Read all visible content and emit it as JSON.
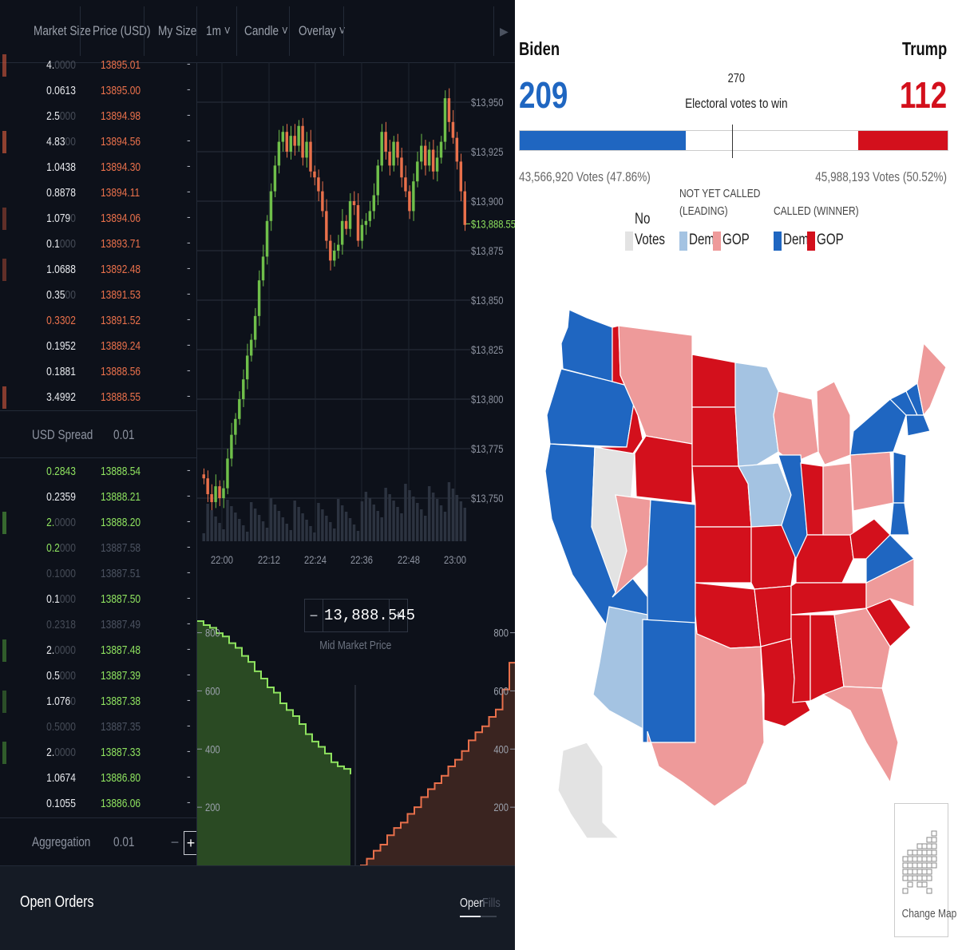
{
  "trading": {
    "header": {
      "market_size": "Market Size",
      "price_usd": "Price (USD)",
      "my_size": "My Size",
      "interval": "1m",
      "chart_type": "Candle",
      "overlay": "Overlay"
    },
    "asks": [
      {
        "size_main": "4.",
        "size_dim": "0000",
        "price": "13895.01",
        "bar": 0.3
      },
      {
        "size_main": "0.0613",
        "size_dim": "",
        "price": "13895.00",
        "bar": 0
      },
      {
        "size_main": "2.5",
        "size_dim": "000",
        "price": "13894.98",
        "bar": 0
      },
      {
        "size_main": "4.83",
        "size_dim": "00",
        "price": "13894.56",
        "bar": 0.35
      },
      {
        "size_main": "1.0438",
        "size_dim": "",
        "price": "13894.30",
        "bar": 0
      },
      {
        "size_main": "0.8878",
        "size_dim": "",
        "price": "13894.11",
        "bar": 0
      },
      {
        "size_main": "1.079",
        "size_dim": "0",
        "price": "13894.06",
        "bar": 0.1
      },
      {
        "size_main": "0.1",
        "size_dim": "000",
        "price": "13893.71",
        "bar": 0
      },
      {
        "size_main": "1.0688",
        "size_dim": "",
        "price": "13892.48",
        "bar": 0.1
      },
      {
        "size_main": "0.35",
        "size_dim": "00",
        "price": "13891.53",
        "bar": 0
      },
      {
        "size_main": "0.3302",
        "size_dim": "",
        "price": "13891.52",
        "bar": 0,
        "size_color": "#e9704b"
      },
      {
        "size_main": "0.1952",
        "size_dim": "",
        "price": "13889.24",
        "bar": 0
      },
      {
        "size_main": "0.1881",
        "size_dim": "",
        "price": "13888.56",
        "bar": 0
      },
      {
        "size_main": "3.4992",
        "size_dim": "",
        "price": "13888.55",
        "bar": 0.3
      }
    ],
    "spread_label": "USD Spread",
    "spread_value": "0.01",
    "bids": [
      {
        "size_main": "0.2843",
        "size_dim": "",
        "price": "13888.54",
        "bar": 0,
        "size_color": "#8ee25f"
      },
      {
        "size_main": "0.2359",
        "size_dim": "",
        "price": "13888.21",
        "bar": 0
      },
      {
        "size_main": "2.",
        "size_dim": "0000",
        "price": "13888.20",
        "bar": 0.3,
        "size_color": "#8ee25f"
      },
      {
        "size_main": "0.2",
        "size_dim": "000",
        "price": "13887.58",
        "bar": 0,
        "size_color": "#8ee25f",
        "muted": true
      },
      {
        "size_main": "",
        "size_dim": "0.1000",
        "price": "13887.51",
        "bar": 0,
        "muted": true
      },
      {
        "size_main": "0.1",
        "size_dim": "000",
        "price": "13887.50",
        "bar": 0
      },
      {
        "size_main": "",
        "size_dim": "0.2318",
        "price": "13887.49",
        "bar": 0,
        "muted": true
      },
      {
        "size_main": "2.",
        "size_dim": "0000",
        "price": "13887.48",
        "bar": 0.2
      },
      {
        "size_main": "0.5",
        "size_dim": "000",
        "price": "13887.39",
        "bar": 0
      },
      {
        "size_main": "1.076",
        "size_dim": "0",
        "price": "13887.38",
        "bar": 0.1
      },
      {
        "size_main": "",
        "size_dim": "0.5000",
        "price": "13887.35",
        "bar": 0,
        "muted": true
      },
      {
        "size_main": "2.",
        "size_dim": "0000",
        "price": "13887.33",
        "bar": 0.2
      },
      {
        "size_main": "1.0674",
        "size_dim": "",
        "price": "13886.80",
        "bar": 0
      },
      {
        "size_main": "0.1055",
        "size_dim": "",
        "price": "13886.06",
        "bar": 0
      }
    ],
    "aggregation_label": "Aggregation",
    "aggregation_value": "0.01",
    "mid_market_value": "13,888.545",
    "mid_market_label": "Mid Market Price",
    "open_orders_title": "Open Orders",
    "tab_open": "Open",
    "tab_fills": "Fills",
    "price_axis": [
      "$13,950",
      "$13,925",
      "$13,900",
      "$13,875",
      "$13,850",
      "$13,825",
      "$13,800",
      "$13,775",
      "$13,750"
    ],
    "current_price_label": "$13,888.55",
    "time_axis": [
      "22:00",
      "22:12",
      "22:24",
      "22:36",
      "22:48",
      "23:00"
    ],
    "depth_axis": [
      "800",
      "600",
      "400",
      "200"
    ],
    "colors": {
      "ask": "#e9704b",
      "bid": "#8ee25f"
    }
  },
  "election": {
    "biden_label": "Biden",
    "trump_label": "Trump",
    "biden_ev": "209",
    "trump_ev": "112",
    "to_win_number": "270",
    "to_win_label": "Electoral votes to win",
    "biden_popular": "43,566,920 Votes (47.86%)",
    "trump_popular": "45,988,193 Votes (50.52%)",
    "legend": {
      "no_votes_1": "No",
      "no_votes_2": "Votes",
      "not_called_1": "NOT YET CALLED",
      "not_called_2": "(LEADING)",
      "called": "CALLED (WINNER)",
      "dem": "Dem",
      "gop": "GOP"
    },
    "change_map": "Change Map",
    "colors": {
      "dem": "#1f66c1",
      "gop": "#d3101c",
      "dem_lead": "#a4c3e2",
      "gop_lead": "#ee9a9a",
      "none": "#e3e3e3"
    }
  }
}
